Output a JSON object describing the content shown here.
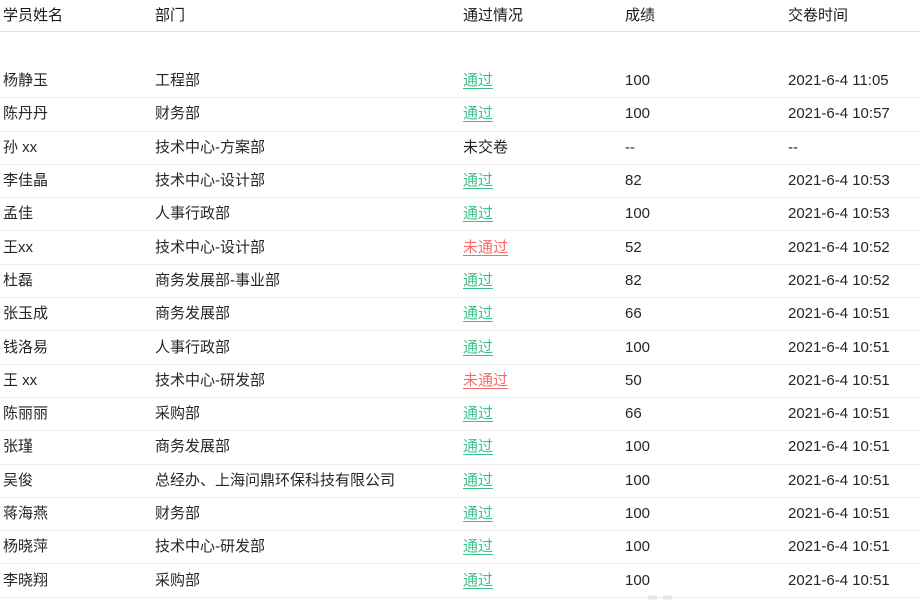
{
  "table": {
    "columns": [
      {
        "key": "name",
        "label": "学员姓名"
      },
      {
        "key": "department",
        "label": "部门"
      },
      {
        "key": "status",
        "label": "通过情况"
      },
      {
        "key": "score",
        "label": "成绩"
      },
      {
        "key": "time",
        "label": "交卷时间"
      }
    ],
    "rows": [
      {
        "name": "杨静玉",
        "department": "工程部",
        "status": "通过",
        "status_type": "pass",
        "score": "100",
        "time": "2021-6-4 11:05"
      },
      {
        "name": "陈丹丹",
        "department": "财务部",
        "status": "通过",
        "status_type": "pass",
        "score": "100",
        "time": "2021-6-4 10:57"
      },
      {
        "name": "孙 xx",
        "department": "技术中心-方案部",
        "status": "未交卷",
        "status_type": "none",
        "score": "--",
        "time": "--"
      },
      {
        "name": "李佳晶",
        "department": "技术中心-设计部",
        "status": "通过",
        "status_type": "pass",
        "score": "82",
        "time": "2021-6-4 10:53"
      },
      {
        "name": "孟佳",
        "department": "人事行政部",
        "status": "通过",
        "status_type": "pass",
        "score": "100",
        "time": "2021-6-4 10:53"
      },
      {
        "name": "王xx",
        "department": "技术中心-设计部",
        "status": "未通过",
        "status_type": "fail",
        "score": "52",
        "time": "2021-6-4 10:52"
      },
      {
        "name": "杜磊",
        "department": "商务发展部-事业部",
        "status": "通过",
        "status_type": "pass",
        "score": "82",
        "time": "2021-6-4 10:52"
      },
      {
        "name": "张玉成",
        "department": "商务发展部",
        "status": "通过",
        "status_type": "pass",
        "score": "66",
        "time": "2021-6-4 10:51"
      },
      {
        "name": "钱洛易",
        "department": "人事行政部",
        "status": "通过",
        "status_type": "pass",
        "score": "100",
        "time": "2021-6-4 10:51"
      },
      {
        "name": "王 xx",
        "department": "技术中心-研发部",
        "status": "未通过",
        "status_type": "fail",
        "score": "50",
        "time": "2021-6-4 10:51"
      },
      {
        "name": "陈丽丽",
        "department": "采购部",
        "status": "通过",
        "status_type": "pass",
        "score": "66",
        "time": "2021-6-4 10:51"
      },
      {
        "name": "张瑾",
        "department": "商务发展部",
        "status": "通过",
        "status_type": "pass",
        "score": "100",
        "time": "2021-6-4 10:51"
      },
      {
        "name": "吴俊",
        "department": "总经办、上海问鼎环保科技有限公司",
        "status": "通过",
        "status_type": "pass",
        "score": "100",
        "time": "2021-6-4 10:51"
      },
      {
        "name": "蒋海燕",
        "department": "财务部",
        "status": "通过",
        "status_type": "pass",
        "score": "100",
        "time": "2021-6-4 10:51"
      },
      {
        "name": "杨晓萍",
        "department": "技术中心-研发部",
        "status": "通过",
        "status_type": "pass",
        "score": "100",
        "time": "2021-6-4 10:51"
      },
      {
        "name": "李晓翔",
        "department": "采购部",
        "status": "通过",
        "status_type": "pass",
        "score": "100",
        "time": "2021-6-4 10:51"
      }
    ]
  },
  "colors": {
    "pass_green": "#3dc28c",
    "fail_red": "#f56c6c",
    "row_border": "#ececec",
    "header_border": "#e4e4e4",
    "text": "#262626"
  }
}
